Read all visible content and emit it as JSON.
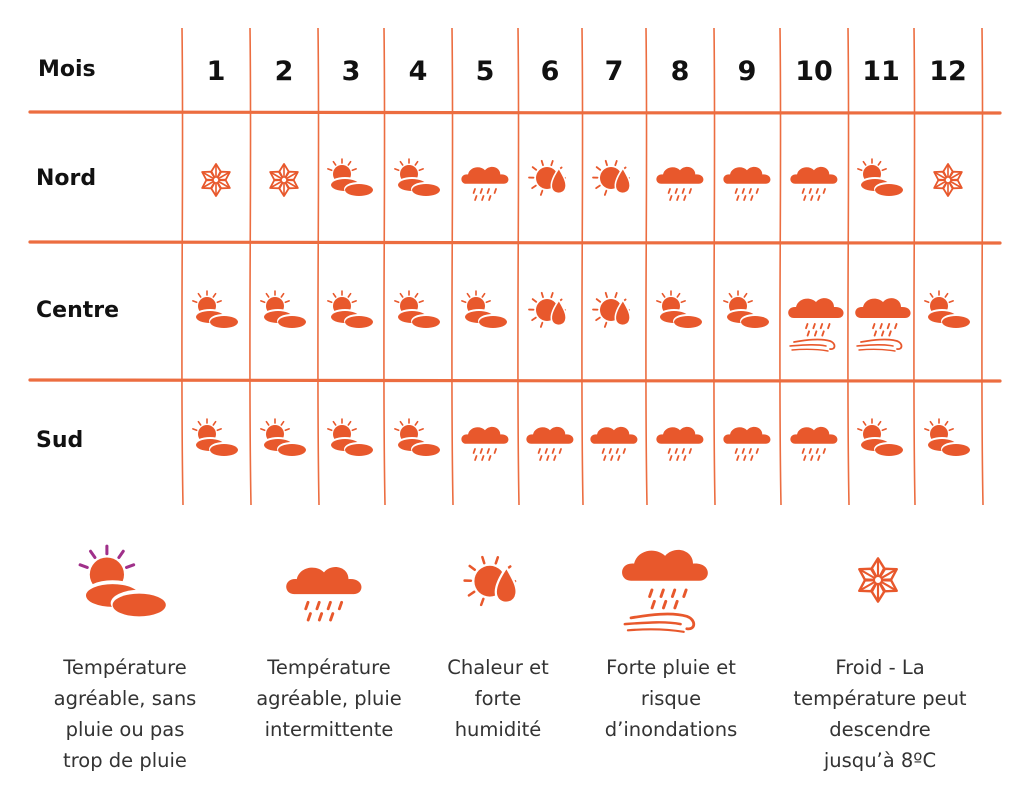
{
  "header": {
    "label": "Mois"
  },
  "months": [
    "1",
    "2",
    "3",
    "4",
    "5",
    "6",
    "7",
    "8",
    "9",
    "10",
    "11",
    "12"
  ],
  "regions": [
    {
      "name": "Nord",
      "icons": [
        "cold",
        "cold",
        "pleasant",
        "pleasant",
        "intermittent",
        "hot-humid",
        "hot-humid",
        "intermittent",
        "intermittent",
        "intermittent",
        "pleasant",
        "cold"
      ]
    },
    {
      "name": "Centre",
      "icons": [
        "pleasant",
        "pleasant",
        "pleasant",
        "pleasant",
        "pleasant",
        "hot-humid",
        "hot-humid",
        "pleasant",
        "pleasant",
        "heavy-rain",
        "heavy-rain",
        "pleasant"
      ]
    },
    {
      "name": "Sud",
      "icons": [
        "pleasant",
        "pleasant",
        "pleasant",
        "pleasant",
        "intermittent",
        "intermittent",
        "intermittent",
        "intermittent",
        "intermittent",
        "intermittent",
        "pleasant",
        "pleasant"
      ]
    }
  ],
  "legend": [
    {
      "icon": "pleasant",
      "lines": [
        "Température",
        "agréable, sans",
        "pluie ou pas",
        "trop de pluie"
      ]
    },
    {
      "icon": "intermittent",
      "lines": [
        "Température",
        "agréable, pluie",
        "intermittente"
      ]
    },
    {
      "icon": "hot-humid",
      "lines": [
        "Chaleur et",
        "forte",
        "humidité"
      ]
    },
    {
      "icon": "heavy-rain",
      "lines": [
        "Forte pluie et",
        "risque",
        "d’inondations"
      ]
    },
    {
      "icon": "cold",
      "lines": [
        "Froid - La",
        "température peut",
        "descendre",
        "jusqu’à 8ºC"
      ]
    }
  ],
  "colors": {
    "accent": "#e8582c",
    "grid": "#ec6d40",
    "text": "#1a1a1a",
    "legend_text": "#333333",
    "sun_rays_highlight": "#a0308a"
  }
}
